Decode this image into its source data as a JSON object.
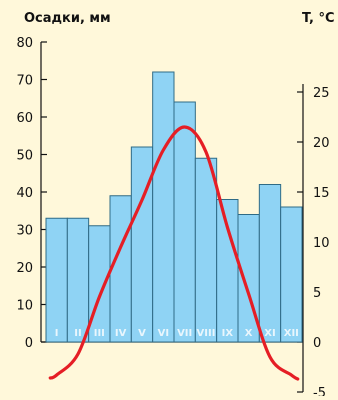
{
  "chart_data": {
    "type": "bar",
    "categories": [
      "I",
      "II",
      "III",
      "IV",
      "V",
      "VI",
      "VII",
      "VIII",
      "IX",
      "X",
      "XI",
      "XII"
    ],
    "left_axis_label": "Осадки, мм",
    "right_axis_label": "T, °C",
    "precipitation_mm": [
      33,
      33,
      31,
      39,
      52,
      72,
      64,
      49,
      38,
      34,
      42,
      36
    ],
    "temperature_c": [
      -3.3,
      -1.2,
      4.5,
      9.5,
      14.2,
      19.2,
      21.5,
      19.0,
      11.5,
      4.8,
      -1.5,
      -3.3
    ],
    "left_ylim": [
      0,
      80
    ],
    "left_ticks": [
      "0",
      "10",
      "20",
      "30",
      "40",
      "50",
      "60",
      "70",
      "80"
    ],
    "right_ylim": [
      -5,
      25
    ],
    "right_ticks": [
      "-5",
      "0",
      "5",
      "10",
      "15",
      "20",
      "25"
    ],
    "colors": {
      "background": "#fff8da",
      "bar_fill": "#8fd3f4",
      "bar_stroke": "#2f6b86",
      "line": "#e51e25",
      "axis": "#111111"
    }
  }
}
